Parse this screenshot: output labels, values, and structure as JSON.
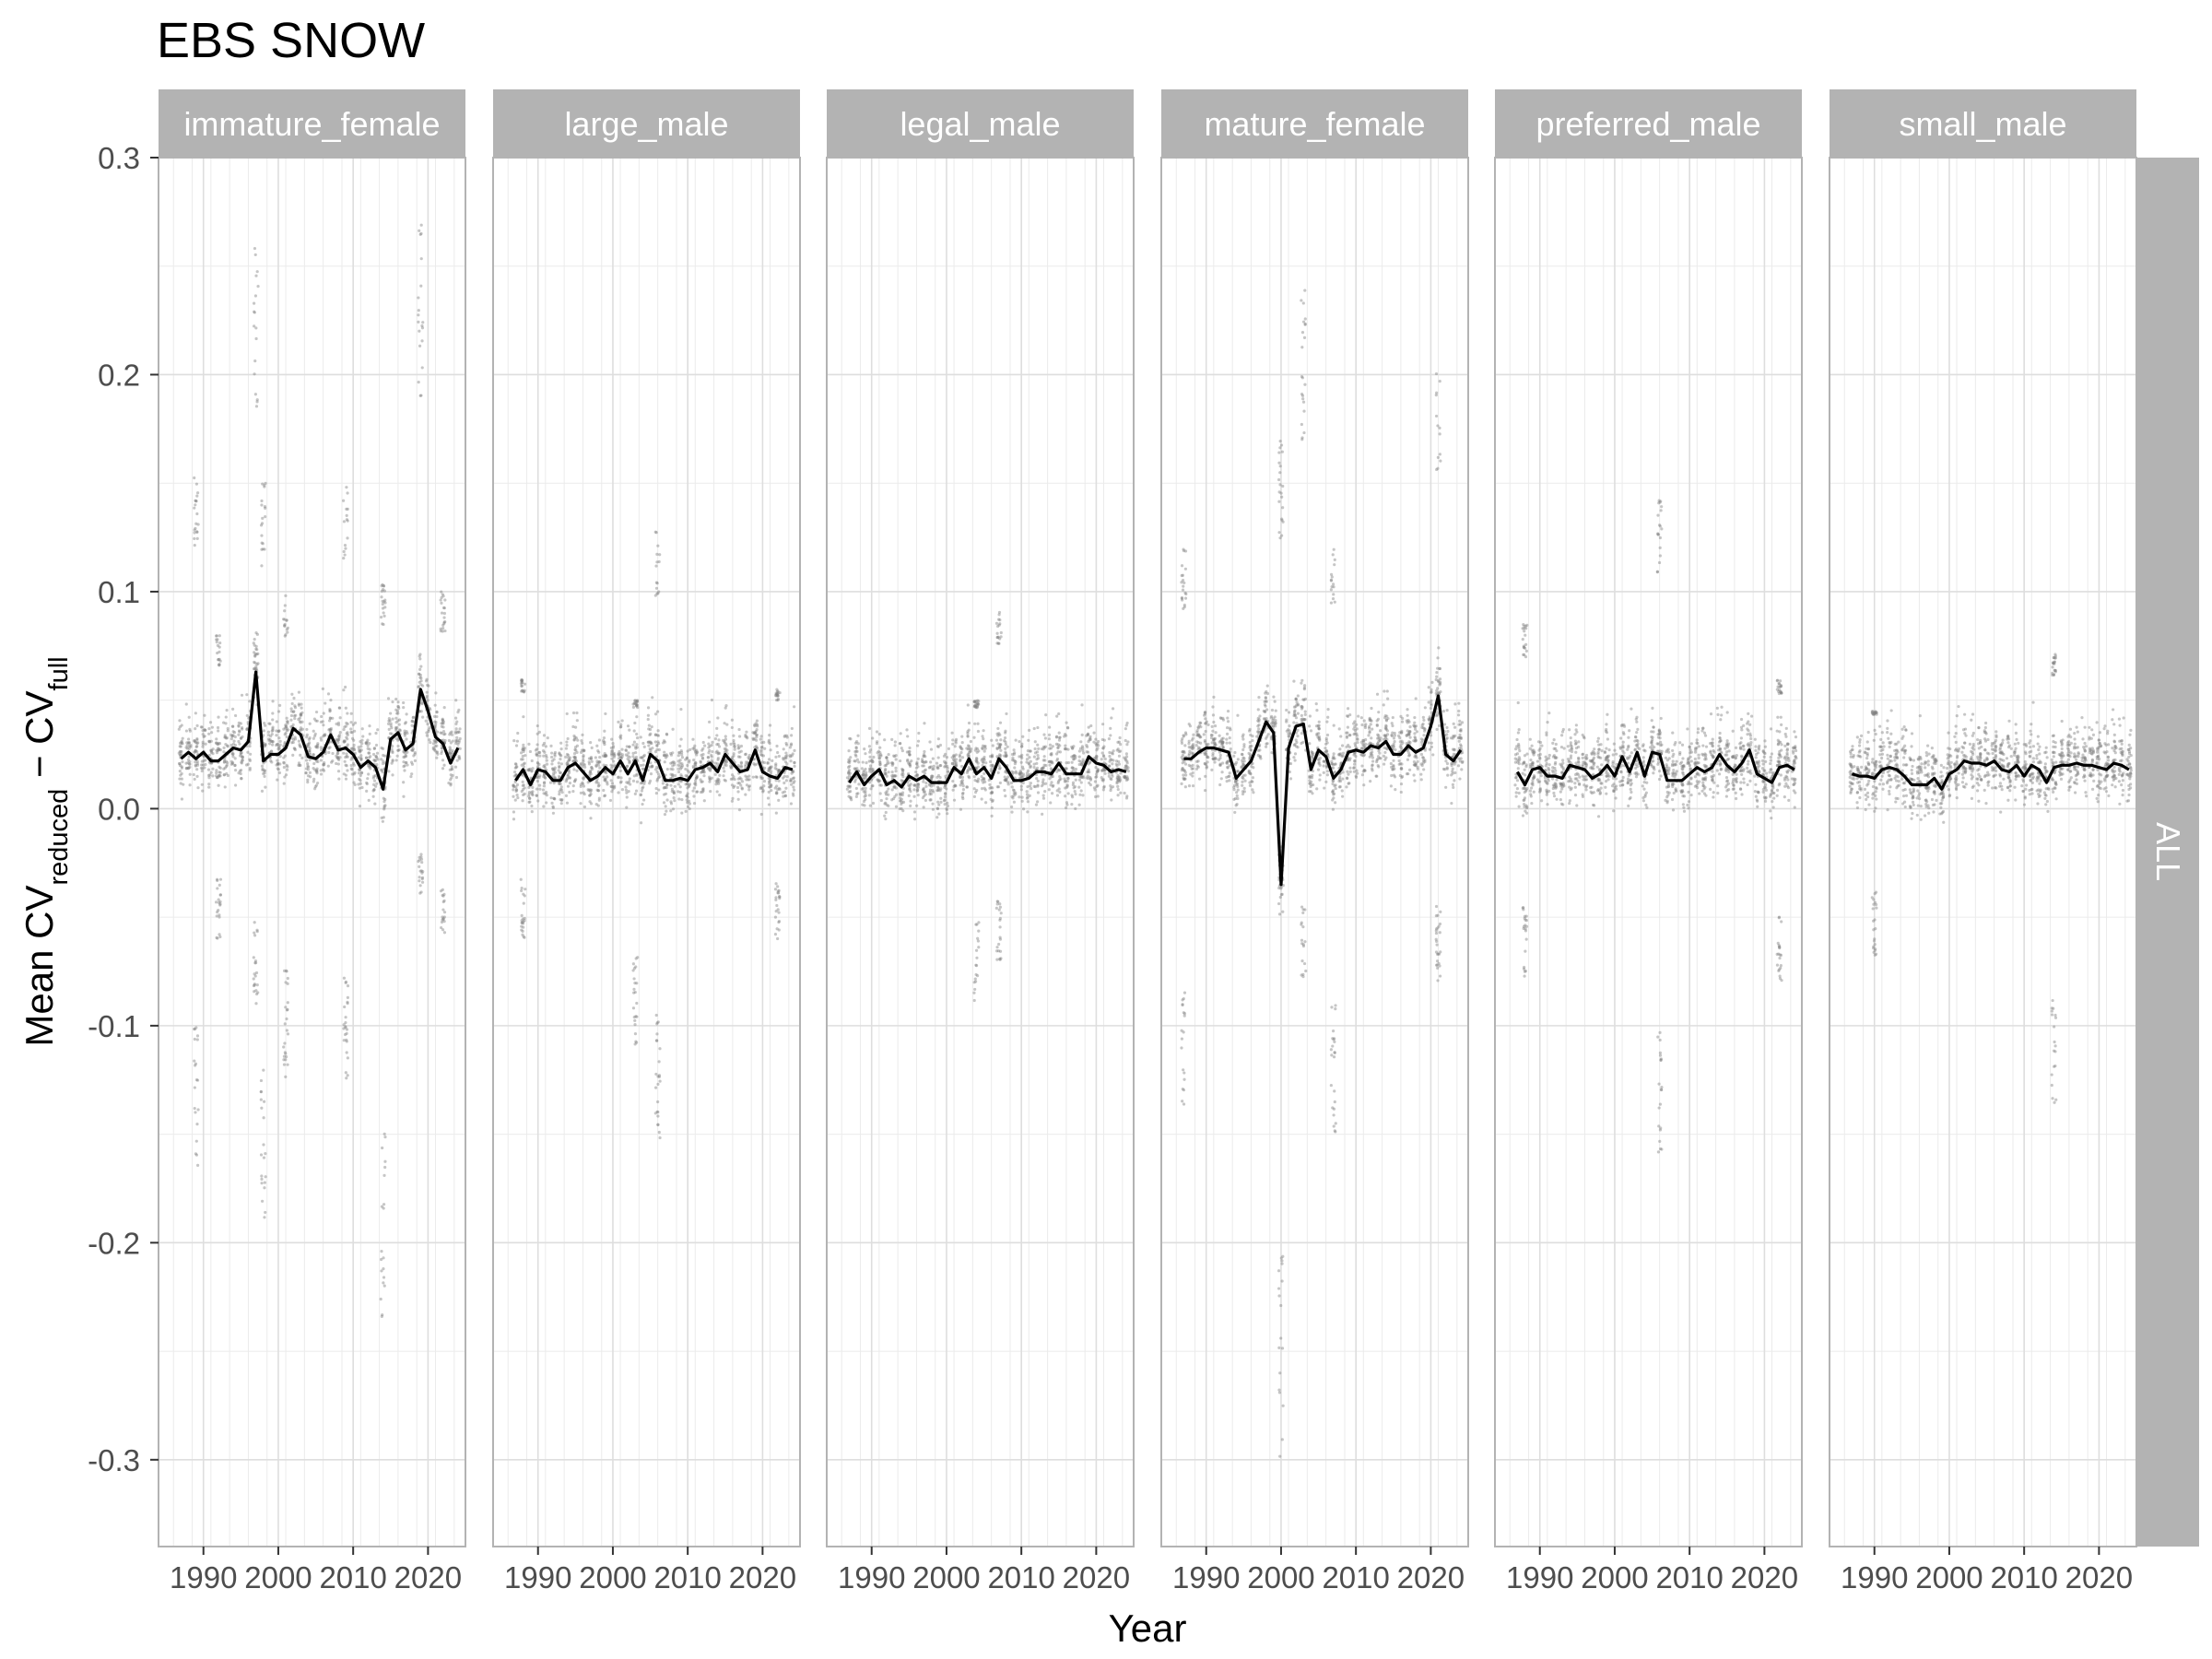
{
  "chart_data": {
    "type": "scatter",
    "title": "EBS SNOW",
    "xlabel": "Year",
    "ylabel": {
      "prefix": "Mean CV",
      "sub1": "reduced",
      "minus": " − CV",
      "sub2": "full"
    },
    "row_strip": "ALL",
    "xlim": [
      1984,
      2025
    ],
    "ylim": [
      -0.34,
      0.3
    ],
    "x_ticks": [
      1990,
      2000,
      2010,
      2020
    ],
    "y_ticks": [
      -0.3,
      -0.2,
      -0.1,
      0.0,
      0.1,
      0.2,
      0.3
    ],
    "y_tick_labels": [
      "-0.3",
      "-0.2",
      "-0.1",
      "0.0",
      "0.1",
      "0.2",
      "0.3"
    ],
    "grid": true,
    "point_color": "#808080",
    "line_color": "#000000",
    "strip_color": "#b3b3b3",
    "panels": [
      {
        "name": "immature_female",
        "mean_line": {
          "x": [
            1987,
            1988,
            1989,
            1990,
            1991,
            1992,
            1993,
            1994,
            1995,
            1996,
            1997,
            1998,
            1999,
            2000,
            2001,
            2002,
            2003,
            2004,
            2005,
            2006,
            2007,
            2008,
            2009,
            2010,
            2011,
            2012,
            2013,
            2014,
            2015,
            2016,
            2017,
            2018,
            2019,
            2020,
            2021,
            2022,
            2023,
            2024
          ],
          "y": [
            0.023,
            0.026,
            0.023,
            0.026,
            0.022,
            0.022,
            0.025,
            0.028,
            0.027,
            0.031,
            0.063,
            0.022,
            0.025,
            0.025,
            0.028,
            0.037,
            0.034,
            0.024,
            0.023,
            0.026,
            0.034,
            0.027,
            0.028,
            0.025,
            0.019,
            0.022,
            0.019,
            0.009,
            0.032,
            0.035,
            0.027,
            0.03,
            0.055,
            0.045,
            0.033,
            0.03,
            0.021,
            0.028
          ]
        },
        "point_summary": [
          {
            "x": 1989,
            "min": -0.165,
            "max": 0.155
          },
          {
            "x": 1992,
            "min": -0.06,
            "max": 0.08
          },
          {
            "x": 1997,
            "min": -0.09,
            "max": 0.26
          },
          {
            "x": 1998,
            "min": -0.19,
            "max": 0.15
          },
          {
            "x": 2001,
            "min": -0.125,
            "max": 0.1
          },
          {
            "x": 2009,
            "min": -0.125,
            "max": 0.15
          },
          {
            "x": 2014,
            "min": -0.237,
            "max": 0.107
          },
          {
            "x": 2019,
            "min": -0.04,
            "max": 0.27
          },
          {
            "x": 2022,
            "min": -0.06,
            "max": 0.1
          }
        ]
      },
      {
        "name": "large_male",
        "mean_line": {
          "x": [
            1987,
            1988,
            1989,
            1990,
            1991,
            1992,
            1993,
            1994,
            1995,
            1996,
            1997,
            1998,
            1999,
            2000,
            2001,
            2002,
            2003,
            2004,
            2005,
            2006,
            2007,
            2008,
            2009,
            2010,
            2011,
            2012,
            2013,
            2014,
            2015,
            2016,
            2017,
            2018,
            2019,
            2020,
            2021,
            2022,
            2023,
            2024
          ],
          "y": [
            0.013,
            0.018,
            0.011,
            0.018,
            0.017,
            0.013,
            0.013,
            0.019,
            0.021,
            0.017,
            0.013,
            0.015,
            0.019,
            0.016,
            0.022,
            0.016,
            0.022,
            0.013,
            0.025,
            0.022,
            0.013,
            0.013,
            0.014,
            0.013,
            0.018,
            0.019,
            0.021,
            0.017,
            0.025,
            0.021,
            0.017,
            0.018,
            0.027,
            0.017,
            0.015,
            0.014,
            0.019,
            0.018
          ]
        },
        "point_summary": [
          {
            "x": 1988,
            "min": -0.06,
            "max": 0.06
          },
          {
            "x": 2003,
            "min": -0.11,
            "max": 0.05
          },
          {
            "x": 2006,
            "min": -0.155,
            "max": 0.128
          },
          {
            "x": 2022,
            "min": -0.06,
            "max": 0.055
          }
        ]
      },
      {
        "name": "legal_male",
        "mean_line": {
          "x": [
            1987,
            1988,
            1989,
            1990,
            1991,
            1992,
            1993,
            1994,
            1995,
            1996,
            1997,
            1998,
            1999,
            2000,
            2001,
            2002,
            2003,
            2004,
            2005,
            2006,
            2007,
            2008,
            2009,
            2010,
            2011,
            2012,
            2013,
            2014,
            2015,
            2016,
            2017,
            2018,
            2019,
            2020,
            2021,
            2022,
            2023,
            2024
          ],
          "y": [
            0.012,
            0.017,
            0.011,
            0.015,
            0.018,
            0.011,
            0.013,
            0.01,
            0.015,
            0.013,
            0.015,
            0.012,
            0.012,
            0.012,
            0.019,
            0.016,
            0.023,
            0.016,
            0.019,
            0.014,
            0.023,
            0.019,
            0.013,
            0.013,
            0.014,
            0.017,
            0.017,
            0.016,
            0.021,
            0.016,
            0.016,
            0.016,
            0.024,
            0.021,
            0.02,
            0.017,
            0.018,
            0.017
          ]
        },
        "point_summary": [
          {
            "x": 2004,
            "min": -0.09,
            "max": 0.05
          },
          {
            "x": 2007,
            "min": -0.07,
            "max": 0.093
          }
        ]
      },
      {
        "name": "mature_female",
        "mean_line": {
          "x": [
            1987,
            1988,
            1989,
            1990,
            1991,
            1992,
            1993,
            1994,
            1995,
            1996,
            1997,
            1998,
            1999,
            2000,
            2001,
            2002,
            2003,
            2004,
            2005,
            2006,
            2007,
            2008,
            2009,
            2010,
            2011,
            2012,
            2013,
            2014,
            2015,
            2016,
            2017,
            2018,
            2019,
            2020,
            2021,
            2022,
            2023,
            2024
          ],
          "y": [
            0.023,
            0.023,
            0.026,
            0.028,
            0.028,
            0.027,
            0.026,
            0.014,
            0.018,
            0.022,
            0.031,
            0.04,
            0.035,
            -0.035,
            0.028,
            0.038,
            0.039,
            0.018,
            0.027,
            0.024,
            0.014,
            0.018,
            0.026,
            0.027,
            0.026,
            0.029,
            0.028,
            0.031,
            0.025,
            0.025,
            0.029,
            0.026,
            0.028,
            0.038,
            0.052,
            0.025,
            0.022,
            0.027
          ]
        },
        "point_summary": [
          {
            "x": 1987,
            "min": -0.14,
            "max": 0.12
          },
          {
            "x": 2000,
            "min": -0.305,
            "max": 0.17
          },
          {
            "x": 2003,
            "min": -0.08,
            "max": 0.24
          },
          {
            "x": 2007,
            "min": -0.15,
            "max": 0.12
          },
          {
            "x": 2021,
            "min": -0.08,
            "max": 0.21
          }
        ]
      },
      {
        "name": "preferred_male",
        "mean_line": {
          "x": [
            1987,
            1988,
            1989,
            1990,
            1991,
            1992,
            1993,
            1994,
            1995,
            1996,
            1997,
            1998,
            1999,
            2000,
            2001,
            2002,
            2003,
            2004,
            2005,
            2006,
            2007,
            2008,
            2009,
            2010,
            2011,
            2012,
            2013,
            2014,
            2015,
            2016,
            2017,
            2018,
            2019,
            2020,
            2021,
            2022,
            2023,
            2024
          ],
          "y": [
            0.017,
            0.011,
            0.018,
            0.019,
            0.015,
            0.015,
            0.014,
            0.02,
            0.019,
            0.018,
            0.014,
            0.016,
            0.02,
            0.015,
            0.024,
            0.017,
            0.026,
            0.015,
            0.026,
            0.025,
            0.013,
            0.013,
            0.013,
            0.016,
            0.019,
            0.017,
            0.019,
            0.025,
            0.02,
            0.017,
            0.021,
            0.027,
            0.016,
            0.014,
            0.012,
            0.019,
            0.02,
            0.018
          ]
        },
        "point_summary": [
          {
            "x": 1988,
            "min": -0.08,
            "max": 0.085
          },
          {
            "x": 2006,
            "min": -0.16,
            "max": 0.143
          },
          {
            "x": 2022,
            "min": -0.085,
            "max": 0.06
          }
        ]
      },
      {
        "name": "small_male",
        "mean_line": {
          "x": [
            1987,
            1988,
            1989,
            1990,
            1991,
            1992,
            1993,
            1994,
            1995,
            1996,
            1997,
            1998,
            1999,
            2000,
            2001,
            2002,
            2003,
            2004,
            2005,
            2006,
            2007,
            2008,
            2009,
            2010,
            2011,
            2012,
            2013,
            2014,
            2015,
            2016,
            2017,
            2018,
            2019,
            2020,
            2021,
            2022,
            2023,
            2024
          ],
          "y": [
            0.016,
            0.015,
            0.015,
            0.014,
            0.018,
            0.019,
            0.018,
            0.015,
            0.011,
            0.011,
            0.011,
            0.014,
            0.009,
            0.016,
            0.018,
            0.022,
            0.021,
            0.021,
            0.02,
            0.022,
            0.018,
            0.017,
            0.02,
            0.015,
            0.02,
            0.018,
            0.012,
            0.019,
            0.02,
            0.02,
            0.021,
            0.02,
            0.02,
            0.019,
            0.018,
            0.021,
            0.02,
            0.018
          ]
        },
        "point_summary": [
          {
            "x": 1990,
            "min": -0.07,
            "max": 0.045
          },
          {
            "x": 2014,
            "min": -0.14,
            "max": 0.072
          }
        ]
      }
    ]
  }
}
